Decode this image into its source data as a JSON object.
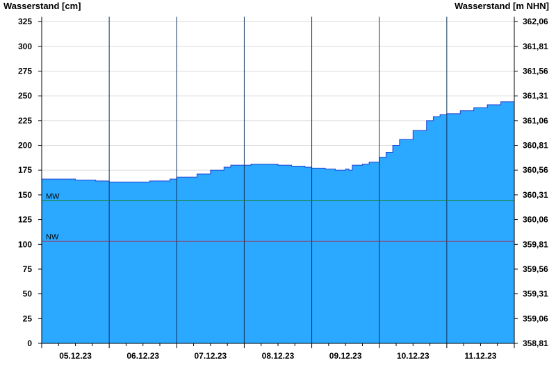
{
  "chart_data": {
    "type": "area",
    "left_axis_label": "Wasserstand [cm]",
    "right_axis_label": "Wasserstand [m NHN]",
    "ylim": [
      0,
      330
    ],
    "y_ticks": [
      0,
      25,
      50,
      75,
      100,
      125,
      150,
      175,
      200,
      225,
      250,
      275,
      300,
      325
    ],
    "right_ticks": [
      "358,81",
      "359,06",
      "359,31",
      "359,56",
      "359,81",
      "360,06",
      "360,31",
      "360,56",
      "360,81",
      "361,06",
      "361,31",
      "361,56",
      "361,81",
      "362,06"
    ],
    "xlim": [
      0,
      7
    ],
    "day_labels": [
      "05.12.23",
      "06.12.23",
      "07.12.23",
      "08.12.23",
      "09.12.23",
      "10.12.23",
      "11.12.23"
    ],
    "grid": true,
    "reference_lines": [
      {
        "label": "MW",
        "value": 144,
        "color": "#1a7f1a"
      },
      {
        "label": "NW",
        "value": 103,
        "color": "#b0203a"
      }
    ],
    "series": [
      {
        "color": "#2ba8ff",
        "x": [
          0,
          0.4,
          0.5,
          0.8,
          1.0,
          1.3,
          1.6,
          1.9,
          2.0,
          2.3,
          2.5,
          2.7,
          2.8,
          3.1,
          3.3,
          3.5,
          3.7,
          3.9,
          4.0,
          4.2,
          4.35,
          4.5,
          4.55,
          4.6,
          4.75,
          4.85,
          5.0,
          5.1,
          5.2,
          5.3,
          5.5,
          5.7,
          5.8,
          5.9,
          6.0,
          6.2,
          6.4,
          6.6,
          6.8,
          7.0
        ],
        "y": [
          166,
          166,
          165,
          164,
          163,
          163,
          164,
          166,
          168,
          171,
          175,
          178,
          180,
          181,
          181,
          180,
          179,
          178,
          177,
          176,
          175,
          176,
          175,
          180,
          181,
          183,
          188,
          193,
          200,
          206,
          215,
          225,
          229,
          231,
          232,
          235,
          238,
          241,
          244,
          246
        ]
      }
    ]
  }
}
